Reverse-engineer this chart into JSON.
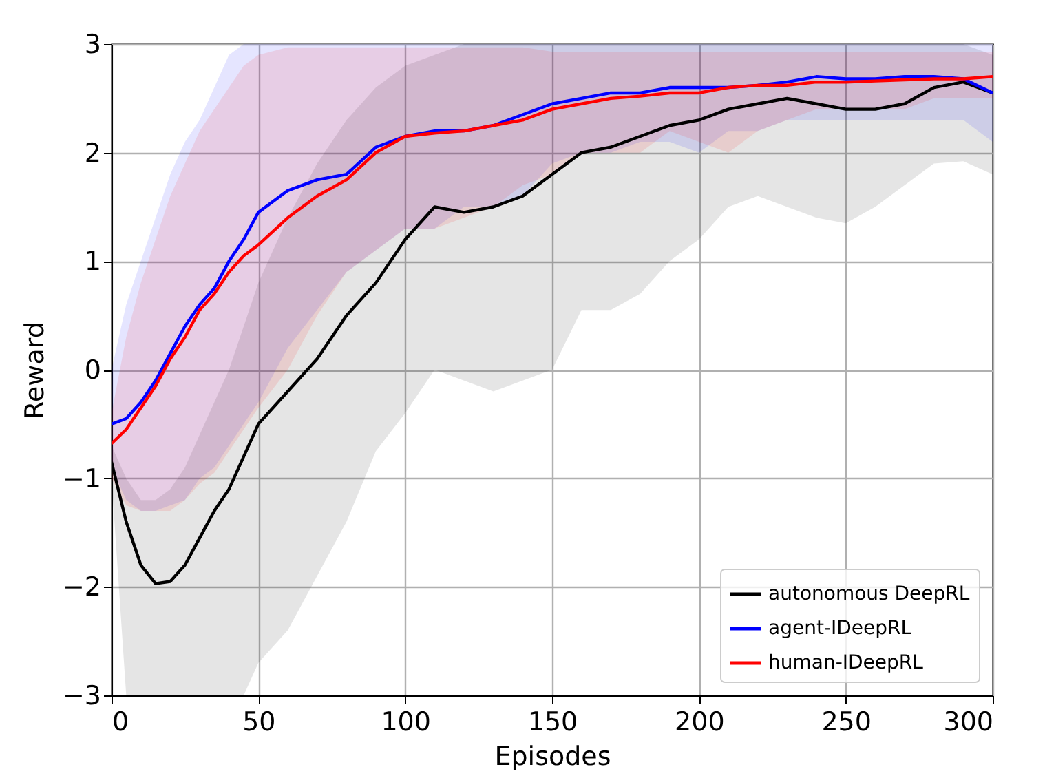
{
  "chart_data": {
    "type": "line",
    "xlabel": "Episodes",
    "ylabel": "Reward",
    "x": [
      0,
      5,
      10,
      15,
      20,
      25,
      30,
      35,
      40,
      45,
      50,
      60,
      70,
      80,
      90,
      100,
      110,
      120,
      130,
      140,
      150,
      160,
      170,
      180,
      190,
      200,
      210,
      220,
      230,
      240,
      250,
      260,
      270,
      280,
      290,
      300
    ],
    "series": [
      {
        "name": "autonomous DeepRL",
        "color": "#000000",
        "values": [
          -0.85,
          -1.4,
          -1.8,
          -1.97,
          -1.95,
          -1.8,
          -1.55,
          -1.3,
          -1.1,
          -0.8,
          -0.5,
          -0.2,
          0.1,
          0.5,
          0.8,
          1.2,
          1.5,
          1.45,
          1.5,
          1.6,
          1.8,
          2.0,
          2.05,
          2.15,
          2.25,
          2.3,
          2.4,
          2.45,
          2.5,
          2.45,
          2.4,
          2.4,
          2.45,
          2.6,
          2.65,
          2.55
        ],
        "lower": [
          -1.0,
          -3,
          -3,
          -3,
          -3,
          -3,
          -3,
          -3,
          -3,
          -3,
          -2.7,
          -2.4,
          -1.9,
          -1.4,
          -0.75,
          -0.4,
          0.0,
          -0.1,
          -0.2,
          -0.1,
          0.0,
          0.55,
          0.55,
          0.7,
          1.0,
          1.2,
          1.5,
          1.6,
          1.5,
          1.4,
          1.35,
          1.5,
          1.7,
          1.9,
          1.92,
          1.8
        ],
        "upper": [
          -0.7,
          -1.0,
          -1.2,
          -1.2,
          -1.1,
          -0.9,
          -0.6,
          -0.3,
          0.0,
          0.4,
          0.8,
          1.4,
          1.9,
          2.3,
          2.6,
          2.8,
          2.9,
          3,
          3,
          3,
          3,
          3,
          3,
          3,
          3,
          3,
          3,
          3,
          3,
          3,
          3,
          3,
          3,
          3,
          3,
          2.9
        ]
      },
      {
        "name": "agent-IDeepRL",
        "color": "#0000ff",
        "values": [
          -0.5,
          -0.45,
          -0.3,
          -0.1,
          0.15,
          0.4,
          0.6,
          0.75,
          1.0,
          1.2,
          1.45,
          1.65,
          1.75,
          1.8,
          2.05,
          2.15,
          2.2,
          2.2,
          2.25,
          2.35,
          2.45,
          2.5,
          2.55,
          2.55,
          2.6,
          2.6,
          2.6,
          2.62,
          2.65,
          2.7,
          2.68,
          2.68,
          2.7,
          2.7,
          2.68,
          2.55
        ],
        "lower": [
          -0.9,
          -1.2,
          -1.3,
          -1.3,
          -1.25,
          -1.2,
          -1.0,
          -0.9,
          -0.7,
          -0.5,
          -0.3,
          0.2,
          0.55,
          0.9,
          1.1,
          1.3,
          1.3,
          1.5,
          1.5,
          1.6,
          1.9,
          2.0,
          2.0,
          2.1,
          2.1,
          2.0,
          2.2,
          2.2,
          2.3,
          2.3,
          2.3,
          2.3,
          2.3,
          2.3,
          2.3,
          2.1
        ],
        "upper": [
          0.0,
          0.6,
          1.0,
          1.4,
          1.8,
          2.1,
          2.3,
          2.6,
          2.9,
          3,
          3,
          3,
          3,
          3,
          3,
          3,
          3,
          3,
          3,
          3,
          3,
          3,
          3,
          3,
          3,
          3,
          3,
          3,
          3,
          3,
          3,
          3,
          3,
          3,
          3,
          3
        ]
      },
      {
        "name": "human-IDeepRL",
        "color": "#ff0000",
        "values": [
          -0.68,
          -0.55,
          -0.35,
          -0.15,
          0.1,
          0.3,
          0.55,
          0.7,
          0.9,
          1.05,
          1.15,
          1.4,
          1.6,
          1.75,
          2.0,
          2.15,
          2.18,
          2.2,
          2.25,
          2.3,
          2.4,
          2.45,
          2.5,
          2.52,
          2.55,
          2.55,
          2.6,
          2.62,
          2.62,
          2.65,
          2.65,
          2.66,
          2.67,
          2.68,
          2.68,
          2.7
        ],
        "lower": [
          -1.0,
          -1.25,
          -1.3,
          -1.3,
          -1.3,
          -1.2,
          -1.05,
          -0.95,
          -0.75,
          -0.55,
          -0.35,
          0.0,
          0.5,
          0.9,
          1.1,
          1.3,
          1.3,
          1.4,
          1.5,
          1.7,
          1.8,
          2.0,
          2.0,
          2.0,
          2.2,
          2.1,
          2.0,
          2.2,
          2.3,
          2.4,
          2.4,
          2.4,
          2.4,
          2.5,
          2.5,
          2.5
        ],
        "upper": [
          -0.4,
          0.3,
          0.8,
          1.2,
          1.6,
          1.9,
          2.2,
          2.4,
          2.6,
          2.8,
          2.9,
          2.97,
          2.97,
          2.97,
          2.97,
          2.97,
          2.97,
          2.97,
          2.97,
          2.97,
          2.93,
          2.93,
          2.93,
          2.93,
          2.93,
          2.93,
          2.93,
          2.93,
          2.93,
          2.93,
          2.93,
          2.93,
          2.93,
          2.93,
          2.93,
          2.93
        ]
      }
    ],
    "xlim": [
      0,
      300
    ],
    "xticks": [
      0,
      50,
      100,
      150,
      200,
      250,
      300
    ],
    "ylim": [
      -3,
      3
    ],
    "yticks": [
      {
        "value": -3,
        "label": "−3"
      },
      {
        "value": -2,
        "label": "−2"
      },
      {
        "value": -1,
        "label": "−1"
      },
      0,
      1,
      2,
      3
    ],
    "grid": true,
    "legend": "bottom right",
    "marker": "none",
    "line_style": "solid"
  }
}
